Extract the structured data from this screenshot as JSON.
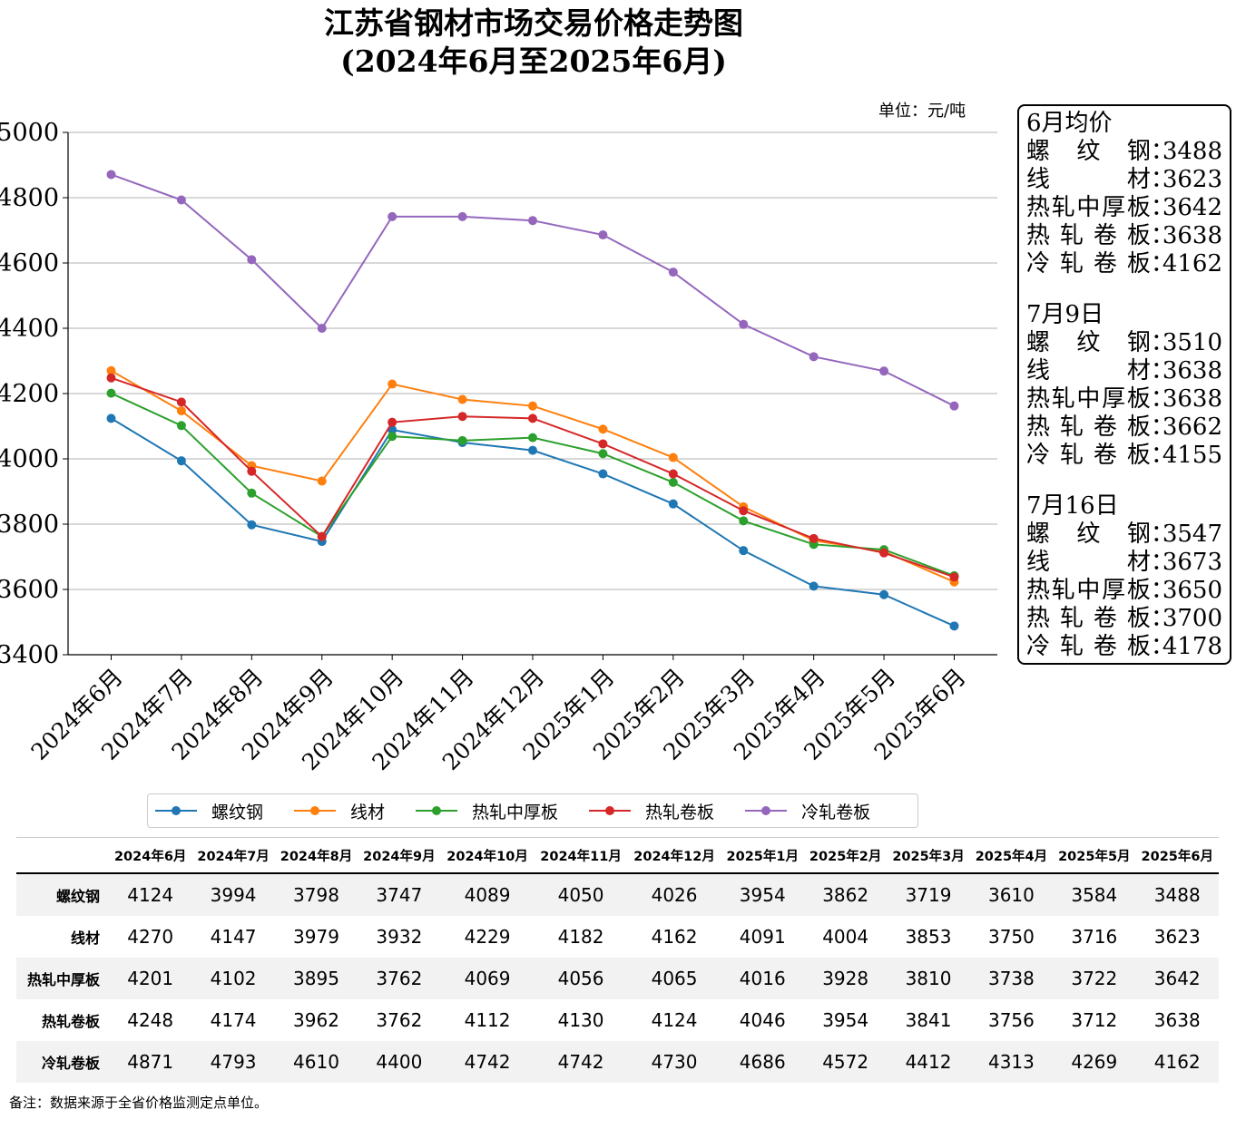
{
  "title": {
    "line1": "江苏省钢材市场交易价格走势图",
    "line2": "(2024年6月至2025年6月)"
  },
  "unit_label": "单位：元/吨",
  "colors": {
    "螺纹钢": "#1f77b4",
    "线材": "#ff7f0e",
    "热轧中厚板": "#2ca02c",
    "热轧卷板": "#d62728",
    "冷轧卷板": "#9467bd",
    "grid": "#b0b0b0",
    "table_shade": "#f2f2f2"
  },
  "chart_data": {
    "type": "line",
    "categories": [
      "2024年6月",
      "2024年7月",
      "2024年8月",
      "2024年9月",
      "2024年10月",
      "2024年11月",
      "2024年12月",
      "2025年1月",
      "2025年2月",
      "2025年3月",
      "2025年4月",
      "2025年5月",
      "2025年6月"
    ],
    "series": [
      {
        "name": "螺纹钢",
        "values": [
          4124,
          3994,
          3798,
          3747,
          4089,
          4050,
          4026,
          3954,
          3862,
          3719,
          3610,
          3584,
          3488
        ]
      },
      {
        "name": "线材",
        "values": [
          4270,
          4147,
          3979,
          3932,
          4229,
          4182,
          4162,
          4091,
          4004,
          3853,
          3750,
          3716,
          3623
        ]
      },
      {
        "name": "热轧中厚板",
        "values": [
          4201,
          4102,
          3895,
          3762,
          4069,
          4056,
          4065,
          4016,
          3928,
          3810,
          3738,
          3722,
          3642
        ]
      },
      {
        "name": "热轧卷板",
        "values": [
          4248,
          4174,
          3962,
          3762,
          4112,
          4130,
          4124,
          4046,
          3954,
          3841,
          3756,
          3712,
          3638
        ]
      },
      {
        "name": "冷轧卷板",
        "values": [
          4871,
          4793,
          4610,
          4400,
          4742,
          4742,
          4730,
          4686,
          4572,
          4412,
          4313,
          4269,
          4162
        ]
      }
    ],
    "ylim": [
      3400,
      5000
    ],
    "yticks": [
      3400,
      3600,
      3800,
      4000,
      4200,
      4400,
      4600,
      4800,
      5000
    ],
    "grid": "horizontal",
    "legend_placement": "bottom",
    "xlabel": "",
    "ylabel": ""
  },
  "info_box": [
    {
      "title": "6月均价",
      "rows": [
        {
          "label": "螺纹钢",
          "value": "3488"
        },
        {
          "label": "线材",
          "value": "3623"
        },
        {
          "label": "热轧中厚板",
          "value": "3642"
        },
        {
          "label": "热轧卷板",
          "value": "3638"
        },
        {
          "label": "冷轧卷板",
          "value": "4162"
        }
      ]
    },
    {
      "title": "7月9日",
      "rows": [
        {
          "label": "螺纹钢",
          "value": "3510"
        },
        {
          "label": "线材",
          "value": "3638"
        },
        {
          "label": "热轧中厚板",
          "value": "3638"
        },
        {
          "label": "热轧卷板",
          "value": "3662"
        },
        {
          "label": "冷轧卷板",
          "value": "4155"
        }
      ]
    },
    {
      "title": "7月16日",
      "rows": [
        {
          "label": "螺纹钢",
          "value": "3547"
        },
        {
          "label": "线材",
          "value": "3673"
        },
        {
          "label": "热轧中厚板",
          "value": "3650"
        },
        {
          "label": "热轧卷板",
          "value": "3700"
        },
        {
          "label": "冷轧卷板",
          "value": "4178"
        }
      ]
    }
  ],
  "info_colon": "：",
  "legend_labels": [
    "螺纹钢",
    "线材",
    "热轧中厚板",
    "热轧卷板",
    "冷轧卷板"
  ],
  "table": {
    "headers": [
      "2024年6月",
      "2024年7月",
      "2024年8月",
      "2024年9月",
      "2024年10月",
      "2024年11月",
      "2024年12月",
      "2025年1月",
      "2025年2月",
      "2025年3月",
      "2025年4月",
      "2025年5月",
      "2025年6月"
    ],
    "rows": [
      {
        "label": "螺纹钢",
        "cells": [
          "4124",
          "3994",
          "3798",
          "3747",
          "4089",
          "4050",
          "4026",
          "3954",
          "3862",
          "3719",
          "3610",
          "3584",
          "3488"
        ]
      },
      {
        "label": "线材",
        "cells": [
          "4270",
          "4147",
          "3979",
          "3932",
          "4229",
          "4182",
          "4162",
          "4091",
          "4004",
          "3853",
          "3750",
          "3716",
          "3623"
        ]
      },
      {
        "label": "热轧中厚板",
        "cells": [
          "4201",
          "4102",
          "3895",
          "3762",
          "4069",
          "4056",
          "4065",
          "4016",
          "3928",
          "3810",
          "3738",
          "3722",
          "3642"
        ]
      },
      {
        "label": "热轧卷板",
        "cells": [
          "4248",
          "4174",
          "3962",
          "3762",
          "4112",
          "4130",
          "4124",
          "4046",
          "3954",
          "3841",
          "3756",
          "3712",
          "3638"
        ]
      },
      {
        "label": "冷轧卷板",
        "cells": [
          "4871",
          "4793",
          "4610",
          "4400",
          "4742",
          "4742",
          "4730",
          "4686",
          "4572",
          "4412",
          "4313",
          "4269",
          "4162"
        ]
      }
    ]
  },
  "note": "备注：数据来源于全省价格监测定点单位。"
}
